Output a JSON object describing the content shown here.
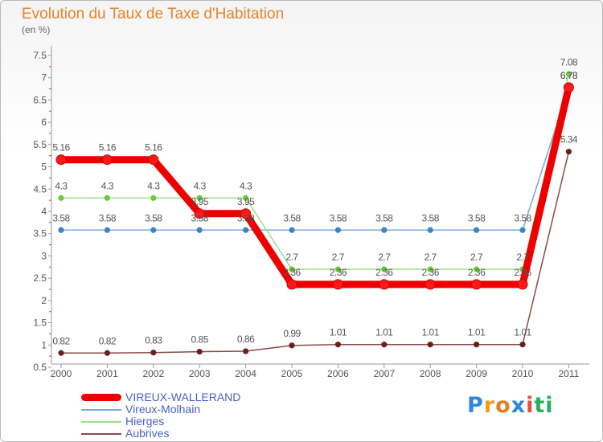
{
  "chart_data": {
    "type": "line",
    "title": "Evolution du Taux de Taxe d'Habitation",
    "subtitle": "(en %)",
    "xlabel": "",
    "ylabel": "",
    "categories": [
      "2000",
      "2001",
      "2002",
      "2003",
      "2004",
      "2005",
      "2006",
      "2007",
      "2008",
      "2009",
      "2010",
      "2011"
    ],
    "ylim": [
      0.5,
      7.5
    ],
    "yticks": [
      "0.5",
      "1",
      "1.5",
      "2",
      "2.5",
      "3",
      "3.5",
      "4",
      "4.5",
      "5",
      "5.5",
      "6",
      "6.5",
      "7",
      "7.5"
    ],
    "legend_position": "bottom-left",
    "series": [
      {
        "name": "VIREUX-WALLERAND",
        "color": "#ee0000",
        "marker": "#ff1a1a",
        "values": [
          5.16,
          5.16,
          5.16,
          3.95,
          3.95,
          2.36,
          2.36,
          2.36,
          2.36,
          2.36,
          2.36,
          6.78
        ],
        "labels": [
          "5.16",
          "5.16",
          "5.16",
          "3.95",
          "3.95",
          "2.36",
          "2.36",
          "2.36",
          "2.36",
          "2.36",
          "2.36",
          "6.78"
        ]
      },
      {
        "name": "Vireux-Molhain",
        "color": "#7aa6d6",
        "marker": "#3a86c8",
        "values": [
          3.58,
          3.58,
          3.58,
          3.58,
          3.58,
          3.58,
          3.58,
          3.58,
          3.58,
          3.58,
          3.58,
          6.78
        ],
        "labels": [
          "3.58",
          "3.58",
          "3.58",
          "3.58",
          "3.58",
          "3.58",
          "3.58",
          "3.58",
          "3.58",
          "3.58",
          "3.58",
          "6.78"
        ]
      },
      {
        "name": "Hierges",
        "color": "#9ee08a",
        "marker": "#66cc33",
        "values": [
          4.3,
          4.3,
          4.3,
          4.3,
          4.3,
          2.7,
          2.7,
          2.7,
          2.7,
          2.7,
          2.7,
          7.08
        ],
        "labels": [
          "4.3",
          "4.3",
          "4.3",
          "4.3",
          "4.3",
          "2.7",
          "2.7",
          "2.7",
          "2.7",
          "2.7",
          "2.7",
          "7.08"
        ]
      },
      {
        "name": "Aubrives",
        "color": "#8a4a4a",
        "marker": "#6b1f1f",
        "values": [
          0.82,
          0.82,
          0.83,
          0.85,
          0.86,
          0.99,
          1.01,
          1.01,
          1.01,
          1.01,
          1.01,
          5.34
        ],
        "labels": [
          "0.82",
          "0.82",
          "0.83",
          "0.85",
          "0.86",
          "0.99",
          "1.01",
          "1.01",
          "1.01",
          "1.01",
          "1.01",
          "5.34"
        ]
      }
    ]
  },
  "logo": {
    "letters": [
      "P",
      "r",
      "o",
      "x",
      "i",
      "t",
      "i"
    ],
    "colors": [
      "#2e86de",
      "#f39c12",
      "#e67e22",
      "#2e86de",
      "#e74c3c",
      "#27ae60",
      "#27ae60"
    ]
  }
}
